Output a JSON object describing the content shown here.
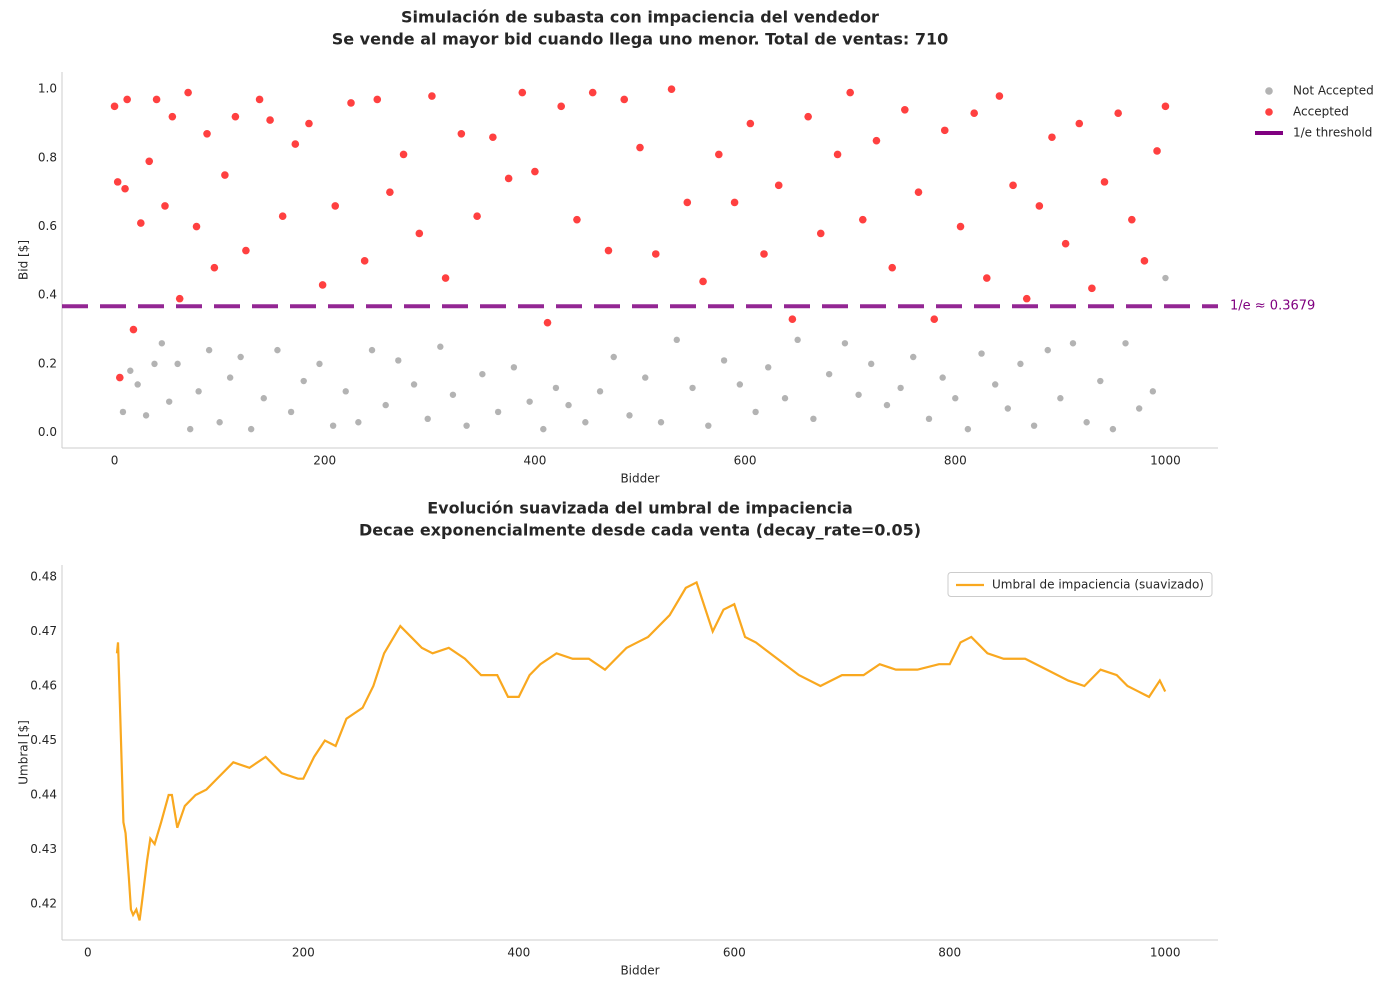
{
  "chart_data": [
    {
      "type": "scatter",
      "title_lines": [
        "Simulación de subasta con impaciencia del vendedor",
        "Se vende al mayor bid cuando llega uno menor. Total de ventas: 710"
      ],
      "xlabel": "Bidder",
      "ylabel": "Bid [$]",
      "xlim": [
        -50,
        1050
      ],
      "ylim": [
        -0.045,
        1.05
      ],
      "xticks": [
        0,
        200,
        400,
        600,
        800,
        1000
      ],
      "yticks": [
        {
          "value": 0,
          "label": "0.0"
        },
        0.2,
        0.4,
        0.6,
        0.8,
        {
          "value": 1,
          "label": "1.0"
        }
      ],
      "grid": false,
      "legend": "outside upper right",
      "series": [
        {
          "name": "Not Accepted",
          "color": "#808080",
          "x": [
            8,
            15,
            22,
            30,
            38,
            45,
            52,
            60,
            72,
            80,
            90,
            100,
            110,
            120,
            130,
            142,
            155,
            168,
            180,
            195,
            208,
            220,
            232,
            245,
            258,
            270,
            285,
            298,
            310,
            322,
            335,
            350,
            365,
            380,
            395,
            408,
            420,
            432,
            448,
            462,
            475,
            490,
            505,
            520,
            535,
            550,
            565,
            580,
            595,
            610,
            622,
            638,
            650,
            665,
            680,
            695,
            708,
            720,
            735,
            748,
            760,
            775,
            788,
            800,
            812,
            825,
            838,
            850,
            862,
            875,
            888,
            900,
            912,
            925,
            938,
            950,
            962,
            975,
            988,
            1000
          ],
          "values": [
            0.06,
            0.18,
            0.14,
            0.05,
            0.2,
            0.26,
            0.09,
            0.2,
            0.01,
            0.12,
            0.24,
            0.03,
            0.16,
            0.22,
            0.01,
            0.1,
            0.24,
            0.06,
            0.15,
            0.2,
            0.02,
            0.12,
            0.03,
            0.24,
            0.08,
            0.21,
            0.14,
            0.04,
            0.25,
            0.11,
            0.02,
            0.17,
            0.06,
            0.19,
            0.09,
            0.01,
            0.13,
            0.08,
            0.03,
            0.12,
            0.22,
            0.05,
            0.16,
            0.03,
            0.27,
            0.13,
            0.02,
            0.21,
            0.14,
            0.06,
            0.19,
            0.1,
            0.27,
            0.04,
            0.17,
            0.26,
            0.11,
            0.2,
            0.08,
            0.13,
            0.22,
            0.04,
            0.16,
            0.1,
            0.01,
            0.23,
            0.14,
            0.07,
            0.2,
            0.02,
            0.24,
            0.1,
            0.26,
            0.03,
            0.15,
            0.01,
            0.26,
            0.07,
            0.12,
            0.45
          ]
        },
        {
          "name": "Accepted",
          "color": "#ff0000",
          "x": [
            0,
            3,
            5,
            10,
            12,
            18,
            25,
            33,
            40,
            48,
            55,
            62,
            70,
            78,
            88,
            95,
            105,
            115,
            125,
            138,
            148,
            160,
            172,
            185,
            198,
            210,
            225,
            238,
            250,
            262,
            275,
            290,
            302,
            315,
            330,
            345,
            360,
            375,
            388,
            400,
            412,
            425,
            440,
            455,
            470,
            485,
            500,
            515,
            530,
            545,
            560,
            575,
            590,
            605,
            618,
            632,
            645,
            660,
            672,
            688,
            700,
            712,
            725,
            740,
            752,
            765,
            780,
            790,
            805,
            818,
            830,
            842,
            855,
            868,
            880,
            892,
            905,
            918,
            930,
            942,
            955,
            968,
            980,
            992,
            1000
          ],
          "values": [
            0.95,
            0.73,
            0.16,
            0.71,
            0.97,
            0.3,
            0.61,
            0.79,
            0.97,
            0.66,
            0.92,
            0.39,
            0.99,
            0.6,
            0.87,
            0.48,
            0.75,
            0.92,
            0.53,
            0.97,
            0.91,
            0.63,
            0.84,
            0.9,
            0.43,
            0.66,
            0.96,
            0.5,
            0.97,
            0.7,
            0.81,
            0.58,
            0.98,
            0.45,
            0.87,
            0.63,
            0.86,
            0.74,
            0.99,
            0.76,
            0.32,
            0.95,
            0.62,
            0.99,
            0.53,
            0.97,
            0.83,
            0.52,
            1.0,
            0.67,
            0.44,
            0.81,
            0.67,
            0.9,
            0.52,
            0.72,
            0.33,
            0.92,
            0.58,
            0.81,
            0.99,
            0.62,
            0.85,
            0.48,
            0.94,
            0.7,
            0.33,
            0.88,
            0.6,
            0.93,
            0.45,
            0.98,
            0.72,
            0.39,
            0.66,
            0.86,
            0.55,
            0.9,
            0.42,
            0.73,
            0.93,
            0.62,
            0.5,
            0.82,
            0.95
          ]
        }
      ],
      "hlines": [
        {
          "name": "1/e threshold",
          "value": 0.3679,
          "color": "#800080",
          "label": "1/e ≈ 0.3679"
        }
      ]
    },
    {
      "type": "line",
      "title_lines": [
        "Evolución suavizada del umbral de impaciencia",
        "Decae exponencialmente desde cada venta (decay_rate=0.05)"
      ],
      "xlabel": "Bidder",
      "ylabel": "Umbral [$]",
      "xlim": [
        -24,
        1049
      ],
      "ylim": [
        0.4134,
        0.4822
      ],
      "xticks": [
        0,
        200,
        400,
        600,
        800,
        1000
      ],
      "yticks": [
        0.42,
        0.43,
        0.44,
        0.45,
        0.46,
        0.47,
        0.48
      ],
      "grid": false,
      "legend": "upper right",
      "series": [
        {
          "name": "Umbral de impaciencia (suavizado)",
          "color": "#f9a81f",
          "x": [
            27,
            28,
            30,
            33,
            35,
            38,
            40,
            42,
            45,
            48,
            50,
            55,
            58,
            62,
            68,
            75,
            78,
            83,
            90,
            100,
            110,
            120,
            135,
            150,
            165,
            180,
            195,
            200,
            210,
            220,
            230,
            240,
            255,
            265,
            275,
            290,
            300,
            310,
            320,
            335,
            350,
            365,
            380,
            390,
            400,
            410,
            420,
            435,
            450,
            465,
            480,
            490,
            500,
            520,
            540,
            555,
            565,
            575,
            580,
            590,
            600,
            610,
            620,
            640,
            660,
            680,
            700,
            720,
            735,
            750,
            770,
            790,
            800,
            810,
            820,
            835,
            850,
            870,
            890,
            910,
            925,
            940,
            955,
            965,
            975,
            985,
            995,
            1000
          ],
          "values": [
            0.466,
            0.468,
            0.455,
            0.435,
            0.433,
            0.425,
            0.419,
            0.418,
            0.419,
            0.417,
            0.42,
            0.428,
            0.432,
            0.431,
            0.435,
            0.44,
            0.44,
            0.434,
            0.438,
            0.44,
            0.441,
            0.443,
            0.446,
            0.445,
            0.447,
            0.444,
            0.443,
            0.443,
            0.447,
            0.45,
            0.449,
            0.454,
            0.456,
            0.46,
            0.466,
            0.471,
            0.469,
            0.467,
            0.466,
            0.467,
            0.465,
            0.462,
            0.462,
            0.458,
            0.458,
            0.462,
            0.464,
            0.466,
            0.465,
            0.465,
            0.463,
            0.465,
            0.467,
            0.469,
            0.473,
            0.478,
            0.479,
            0.473,
            0.47,
            0.474,
            0.475,
            0.469,
            0.468,
            0.465,
            0.462,
            0.46,
            0.462,
            0.462,
            0.464,
            0.463,
            0.463,
            0.464,
            0.464,
            0.468,
            0.469,
            0.466,
            0.465,
            0.465,
            0.463,
            0.461,
            0.46,
            0.463,
            0.462,
            0.46,
            0.459,
            0.458,
            0.461,
            0.459
          ]
        }
      ]
    }
  ]
}
